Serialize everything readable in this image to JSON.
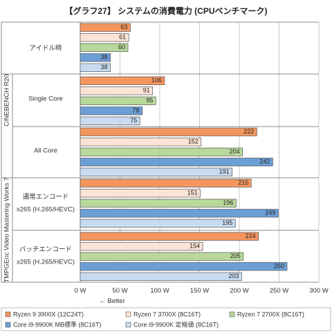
{
  "chart_data": {
    "type": "bar",
    "orientation": "horizontal",
    "title": "【グラフ27】 システムの消費電力 (CPUベンチマーク)",
    "x_unit_suffix": " W",
    "xlim": [
      0,
      300
    ],
    "xticks": [
      0,
      50,
      100,
      150,
      200,
      250,
      300
    ],
    "x_note": "← Better",
    "grid": true,
    "legend_position": "bottom",
    "series": [
      {
        "name": "Ryzen 9 3900X (12C24T)",
        "color": "#F4965E",
        "values": [
          63,
          106,
          222,
          215,
          224
        ]
      },
      {
        "name": "Ryzen 7 3700X (8C16T)",
        "color": "#FBE4D6",
        "values": [
          61,
          91,
          152,
          151,
          154
        ]
      },
      {
        "name": "Ryzen 7 2700X (8C16T)",
        "color": "#B8D89C",
        "values": [
          60,
          95,
          204,
          196,
          205
        ]
      },
      {
        "name": "Core i9-9900K MB標準 (8C16T)",
        "color": "#6C9FD6",
        "values": [
          38,
          78,
          242,
          249,
          260
        ]
      },
      {
        "name": "Core i9-9900K 定格値 (8C16T)",
        "color": "#C9DBF0",
        "values": [
          38,
          75,
          191,
          195,
          203
        ]
      }
    ],
    "groups": [
      {
        "label_lines": [
          "アイドル時"
        ]
      },
      {
        "label_lines": [
          "Single Core"
        ]
      },
      {
        "label_lines": [
          "All Core"
        ]
      },
      {
        "label_lines": [
          "通常エンコード",
          "x265 (H.265/HEVC)"
        ]
      },
      {
        "label_lines": [
          "バッチエンコード",
          "x265 (H.265/HEVC)"
        ]
      }
    ],
    "sections": [
      {
        "label": "CINEBENCH R20"
      },
      {
        "label": "TMPGEnc Video Mastering Works 7"
      }
    ]
  }
}
